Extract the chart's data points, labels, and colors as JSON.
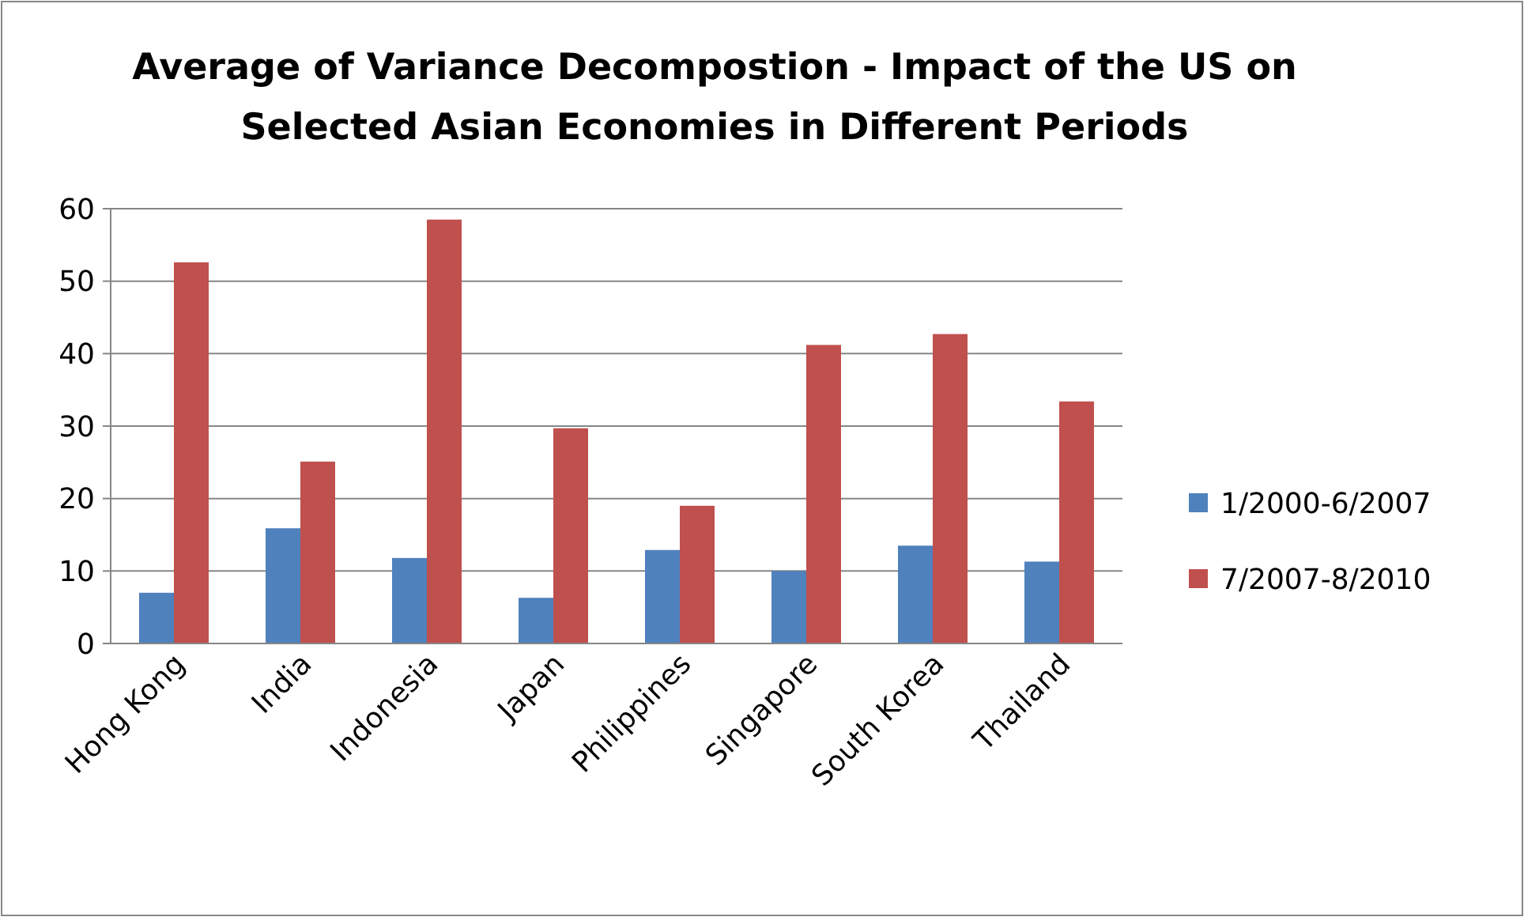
{
  "chart_data": {
    "type": "bar",
    "title": "Average of Variance Decompostion - Impact of the US on Selected Asian Economies in Different Periods",
    "categories": [
      "Hong Kong",
      "India",
      "Indonesia",
      "Japan",
      "Philippines",
      "Singapore",
      "South Korea",
      "Thailand"
    ],
    "series": [
      {
        "name": "1/2000-6/2007",
        "color": "#4f81bd",
        "values": [
          7.0,
          15.9,
          11.8,
          6.3,
          12.9,
          10.0,
          13.5,
          11.3
        ]
      },
      {
        "name": "7/2007-8/2010",
        "color": "#c0504d",
        "values": [
          52.6,
          25.1,
          58.5,
          29.7,
          19.0,
          41.2,
          42.7,
          33.4
        ]
      }
    ],
    "ylim": [
      0,
      60
    ],
    "yticks": [
      0,
      10,
      20,
      30,
      40,
      50,
      60
    ],
    "grid": "y",
    "legend": "right"
  }
}
